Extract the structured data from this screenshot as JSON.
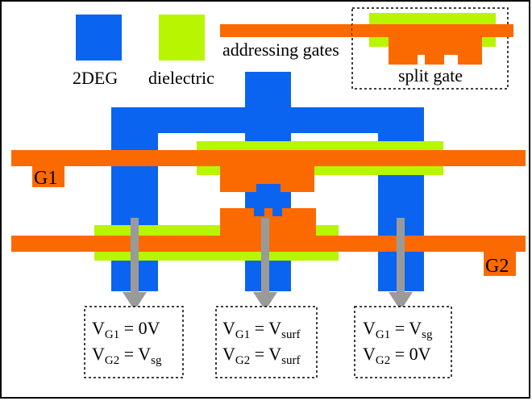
{
  "colors": {
    "twodeg": "#0a64f0",
    "dielectric": "#b8f500",
    "gate": "#fa6a00",
    "arrow": "#9a9a9a"
  },
  "legend": {
    "twodeg_label": "2DEG",
    "dielectric_label": "dielectric",
    "addressing_label": "addressing gates",
    "splitgate_label": "split gate"
  },
  "gates": {
    "g1_label": "G1",
    "g2_label": "G2"
  },
  "boxes": [
    {
      "line1": {
        "v": "V",
        "sub": "G1",
        "eq": " = 0V",
        "rhs_sub": ""
      },
      "line2": {
        "v": "V",
        "sub": "G2",
        "eq": " = V",
        "rhs_sub": "sg"
      }
    },
    {
      "line1": {
        "v": "V",
        "sub": "G1",
        "eq": " = V",
        "rhs_sub": "surf"
      },
      "line2": {
        "v": "V",
        "sub": "G2",
        "eq": " = V",
        "rhs_sub": "surf"
      }
    },
    {
      "line1": {
        "v": "V",
        "sub": "G1",
        "eq": " = V",
        "rhs_sub": "sg"
      },
      "line2": {
        "v": "V",
        "sub": "G2",
        "eq": " =  0V",
        "rhs_sub": ""
      }
    }
  ]
}
